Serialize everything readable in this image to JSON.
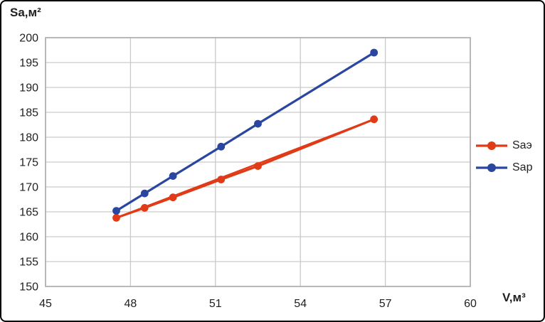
{
  "figure": {
    "y_axis_title": "Sa,м²",
    "x_axis_title": "V,м³"
  },
  "chart_data": {
    "type": "line",
    "title": "",
    "xlabel": "V,м³",
    "ylabel": "Sa,м²",
    "xlim": [
      45,
      60
    ],
    "ylim": [
      150,
      200
    ],
    "xticks": [
      45,
      48,
      51,
      54,
      57,
      60
    ],
    "yticks": [
      150,
      155,
      160,
      165,
      170,
      175,
      180,
      185,
      190,
      195,
      200
    ],
    "grid": true,
    "legend_position": "right",
    "grid_color": "#c9c9c9",
    "frame_color": "#a6a6a6",
    "tick_color": "#1f1f1f",
    "series": [
      {
        "name": "Saэ",
        "color": "#e13a17",
        "marker": "circle",
        "trendline": true,
        "x": [
          47.5,
          48.5,
          49.5,
          51.2,
          52.5,
          56.6
        ],
        "values": [
          163.8,
          165.8,
          167.9,
          171.5,
          174.2,
          183.6
        ]
      },
      {
        "name": "Sap",
        "color": "#2a469e",
        "marker": "circle",
        "trendline": true,
        "x": [
          47.5,
          48.5,
          49.5,
          51.2,
          52.5,
          56.6
        ],
        "values": [
          165.2,
          168.7,
          172.2,
          178.1,
          182.7,
          197.0
        ]
      }
    ]
  }
}
